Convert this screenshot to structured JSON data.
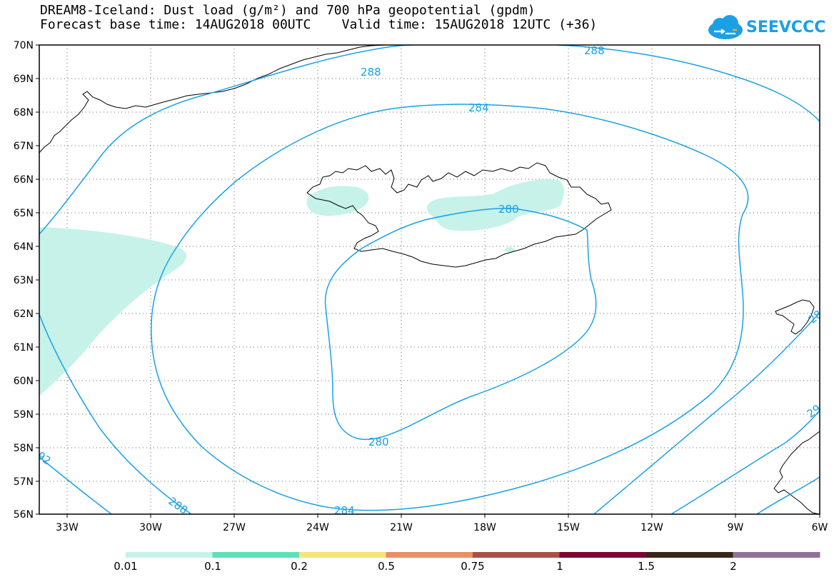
{
  "header": {
    "title_line1": "DREAM8-Iceland: Dust load (g/m²) and 700 hPa geopotential (gpdm)",
    "title_line2": "Forecast base time: 14AUG2018 00UTC    Valid time: 15AUG2018 12UTC (+36)",
    "logo_text": "SEEVCCC"
  },
  "map": {
    "latitude_labels": [
      "70N",
      "69N",
      "68N",
      "67N",
      "66N",
      "65N",
      "64N",
      "63N",
      "62N",
      "61N",
      "60N",
      "59N",
      "58N",
      "57N",
      "56N"
    ],
    "longitude_labels": [
      "33W",
      "30W",
      "27W",
      "24W",
      "21W",
      "18W",
      "15W",
      "12W",
      "9W",
      "6W"
    ],
    "contour_labels": [
      "288",
      "288",
      "284",
      "280",
      "280",
      "284",
      "288",
      "92",
      "28",
      "29"
    ],
    "colors": {
      "contour": "#1aa0e6",
      "dust_fill": "#c6f2ea",
      "coast": "#000000"
    }
  },
  "legend": {
    "values": [
      "0.01",
      "0.1",
      "0.2",
      "0.5",
      "0.75",
      "1",
      "1.5",
      "2"
    ],
    "colors": [
      "#c6f2ea",
      "#5fe0b7",
      "#f4e47c",
      "#ea8e66",
      "#a9504a",
      "#7a0631",
      "#3b2418",
      "#92709b"
    ]
  }
}
